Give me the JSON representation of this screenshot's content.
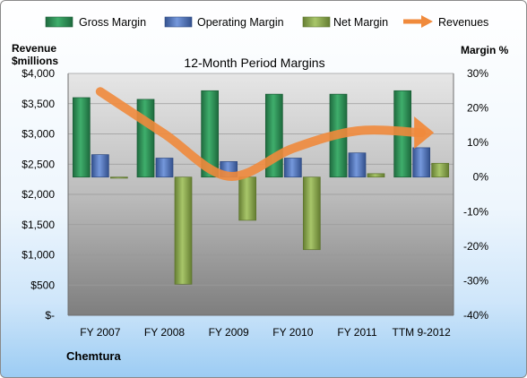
{
  "chart_data": {
    "type": "bar",
    "title": "12-Month Period Margins",
    "company": "Chemtura",
    "left_axis_label": "Revenue $millions",
    "left_axis_label_lines": [
      "Revenue",
      "$millions"
    ],
    "right_axis_label": "Margin %",
    "categories": [
      "FY 2007",
      "FY 2008",
      "FY 2009",
      "FY 2010",
      "FY 2011",
      "TTM 9-2012"
    ],
    "left_ticks": [
      "$-",
      "$500",
      "$1,000",
      "$1,500",
      "$2,000",
      "$2,500",
      "$3,000",
      "$3,500",
      "$4,000"
    ],
    "right_ticks": [
      "-40%",
      "-30%",
      "-20%",
      "-10%",
      "0%",
      "10%",
      "20%",
      "30%"
    ],
    "left_ylim": [
      0,
      4000
    ],
    "right_ylim": [
      -40,
      30
    ],
    "grid": true,
    "legend_position": "top",
    "series": [
      {
        "name": "Gross Margin",
        "axis": "right",
        "color": "#2e8b57",
        "values": [
          23,
          22.5,
          25,
          24,
          24,
          25
        ]
      },
      {
        "name": "Operating Margin",
        "axis": "right",
        "color": "#4f72b8",
        "values": [
          6.5,
          5.5,
          4.5,
          5.5,
          7,
          8.5
        ]
      },
      {
        "name": "Net Margin",
        "axis": "right",
        "color": "#8aaa4a",
        "values": [
          -0.3,
          -31,
          -12.5,
          -21,
          1,
          4
        ]
      },
      {
        "name": "Revenues",
        "axis": "left",
        "color": "#f08a3c",
        "values": [
          3700,
          3000,
          2300,
          2760,
          3050,
          3020
        ]
      }
    ]
  }
}
